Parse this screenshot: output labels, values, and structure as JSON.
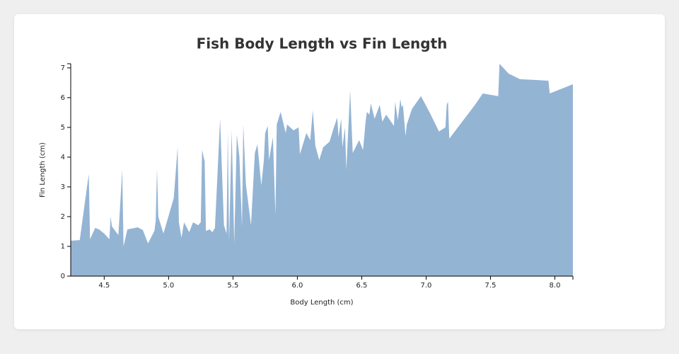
{
  "chart_data": {
    "type": "area",
    "title": "Fish Body Length vs Fin Length",
    "x_label": "Body Length (cm)",
    "y_label": "Fin Length (cm)",
    "color": "#94b4d4",
    "xlim": [
      4.24,
      8.14
    ],
    "ylim": [
      0,
      7.14
    ],
    "xticks": [
      {
        "value": 4.5,
        "label": "4.5"
      },
      {
        "value": 5.0,
        "label": "5.0"
      },
      {
        "value": 5.5,
        "label": "5.5"
      },
      {
        "value": 6.0,
        "label": "6.0"
      },
      {
        "value": 6.5,
        "label": "6.5"
      },
      {
        "value": 7.0,
        "label": "7.0"
      },
      {
        "value": 7.5,
        "label": "7.5"
      },
      {
        "value": 8.0,
        "label": "8.0"
      }
    ],
    "yticks": [
      0,
      1,
      2,
      3,
      4,
      5,
      6,
      7
    ],
    "x": [
      4.24,
      4.31,
      4.38,
      4.39,
      4.43,
      4.46,
      4.5,
      4.54,
      4.55,
      4.56,
      4.61,
      4.64,
      4.65,
      4.68,
      4.76,
      4.8,
      4.84,
      4.89,
      4.9,
      4.91,
      4.92,
      4.96,
      5.04,
      5.07,
      5.08,
      5.1,
      5.12,
      5.16,
      5.19,
      5.23,
      5.25,
      5.26,
      5.28,
      5.29,
      5.32,
      5.34,
      5.36,
      5.4,
      5.43,
      5.45,
      5.46,
      5.47,
      5.49,
      5.51,
      5.53,
      5.55,
      5.57,
      5.58,
      5.6,
      5.64,
      5.67,
      5.69,
      5.72,
      5.74,
      5.75,
      5.77,
      5.78,
      5.81,
      5.83,
      5.84,
      5.87,
      5.91,
      5.92,
      5.97,
      6.01,
      6.02,
      6.07,
      6.1,
      6.12,
      6.14,
      6.17,
      6.2,
      6.25,
      6.28,
      6.31,
      6.32,
      6.34,
      6.35,
      6.37,
      6.38,
      6.41,
      6.43,
      6.48,
      6.51,
      6.53,
      6.54,
      6.56,
      6.57,
      6.6,
      6.64,
      6.66,
      6.69,
      6.75,
      6.76,
      6.78,
      6.8,
      6.81,
      6.82,
      6.84,
      6.85,
      6.89,
      6.96,
      7.03,
      7.1,
      7.15,
      7.16,
      7.17,
      7.18,
      7.38,
      7.44,
      7.56,
      7.57,
      7.64,
      7.73,
      7.95,
      7.96,
      8.14
    ],
    "values": [
      1.19,
      1.21,
      3.43,
      1.24,
      1.62,
      1.57,
      1.43,
      1.24,
      2.0,
      1.67,
      1.38,
      3.57,
      1.0,
      1.57,
      1.64,
      1.55,
      1.1,
      1.52,
      1.86,
      3.62,
      2.0,
      1.43,
      2.62,
      4.33,
      1.81,
      1.29,
      1.81,
      1.48,
      1.81,
      1.71,
      1.81,
      4.24,
      3.86,
      1.52,
      1.57,
      1.48,
      1.62,
      5.29,
      1.71,
      1.43,
      4.86,
      1.19,
      4.9,
      1.1,
      4.76,
      4.0,
      1.67,
      5.1,
      3.1,
      1.71,
      4.14,
      4.43,
      3.05,
      3.9,
      4.81,
      5.05,
      3.9,
      4.67,
      2.05,
      5.1,
      5.52,
      4.81,
      5.1,
      4.9,
      5.0,
      4.1,
      4.81,
      4.57,
      5.57,
      4.38,
      3.9,
      4.33,
      4.52,
      4.95,
      5.33,
      4.67,
      5.29,
      4.33,
      5.0,
      3.57,
      6.24,
      4.14,
      4.57,
      4.24,
      5.19,
      5.52,
      5.43,
      5.81,
      5.29,
      5.76,
      5.19,
      5.43,
      5.05,
      5.86,
      5.24,
      5.95,
      5.67,
      5.76,
      4.71,
      5.1,
      5.62,
      6.05,
      5.48,
      4.86,
      5.0,
      5.76,
      5.86,
      4.62,
      5.76,
      6.14,
      6.05,
      7.14,
      6.81,
      6.62,
      6.57,
      6.14,
      6.45
    ]
  }
}
